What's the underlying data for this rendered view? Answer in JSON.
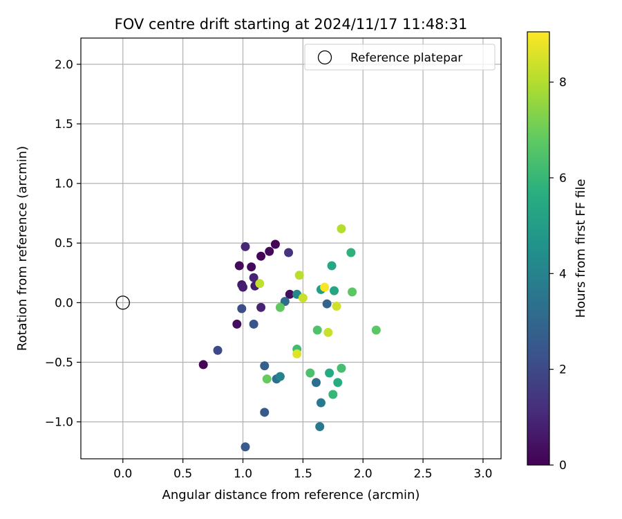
{
  "chart_data": {
    "type": "scatter",
    "title": "FOV centre drift starting at 2024/11/17 11:48:31",
    "xlabel": "Angular distance from reference (arcmin)",
    "ylabel": "Rotation from reference (arcmin)",
    "xlim": [
      -0.35,
      3.15
    ],
    "ylim": [
      -1.31,
      2.22
    ],
    "x_ticks": [
      0.0,
      0.5,
      1.0,
      1.5,
      2.0,
      2.5,
      3.0
    ],
    "x_tick_labels": [
      "0.0",
      "0.5",
      "1.0",
      "1.5",
      "2.0",
      "2.5",
      "3.0"
    ],
    "y_ticks": [
      -1.0,
      -0.5,
      0.0,
      0.5,
      1.0,
      1.5,
      2.0
    ],
    "y_tick_labels": [
      "−1.0",
      "−0.5",
      "0.0",
      "0.5",
      "1.0",
      "1.5",
      "2.0"
    ],
    "grid": true,
    "legend": {
      "placement": "top-right",
      "entries": [
        "Reference platepar"
      ]
    },
    "reference_point": {
      "x": 0.0,
      "y": 0.0,
      "marker": "open-circle",
      "label": "Reference platepar"
    },
    "colorbar": {
      "label": "Hours from first FF file",
      "colormap": "viridis",
      "range": [
        0,
        9.05
      ],
      "ticks": [
        0,
        2,
        4,
        6,
        8
      ],
      "tick_labels": [
        "0",
        "2",
        "4",
        "6",
        "8"
      ]
    },
    "points": [
      {
        "x": 0.67,
        "y": -0.52,
        "h": 0.1
      },
      {
        "x": 0.95,
        "y": -0.18,
        "h": 0.3
      },
      {
        "x": 0.97,
        "y": 0.31,
        "h": 0.2
      },
      {
        "x": 0.99,
        "y": 0.15,
        "h": 0.6
      },
      {
        "x": 1.0,
        "y": 0.13,
        "h": 0.8
      },
      {
        "x": 1.07,
        "y": 0.3,
        "h": 0.2
      },
      {
        "x": 1.09,
        "y": 0.21,
        "h": 0.9
      },
      {
        "x": 1.1,
        "y": 0.14,
        "h": 0.7
      },
      {
        "x": 1.15,
        "y": 0.39,
        "h": 0.1
      },
      {
        "x": 1.22,
        "y": 0.43,
        "h": 0.2
      },
      {
        "x": 1.27,
        "y": 0.49,
        "h": 0.1
      },
      {
        "x": 1.02,
        "y": 0.47,
        "h": 1.0
      },
      {
        "x": 1.15,
        "y": -0.04,
        "h": 0.9
      },
      {
        "x": 1.39,
        "y": 0.07,
        "h": 0.3
      },
      {
        "x": 1.38,
        "y": 0.42,
        "h": 1.3
      },
      {
        "x": 0.79,
        "y": -0.4,
        "h": 2.0
      },
      {
        "x": 0.99,
        "y": -0.05,
        "h": 2.1
      },
      {
        "x": 1.09,
        "y": -0.18,
        "h": 2.4
      },
      {
        "x": 1.18,
        "y": -0.92,
        "h": 2.5
      },
      {
        "x": 1.02,
        "y": -1.21,
        "h": 2.6
      },
      {
        "x": 1.18,
        "y": -0.53,
        "h": 2.8
      },
      {
        "x": 1.7,
        "y": -0.01,
        "h": 2.9
      },
      {
        "x": 1.35,
        "y": 0.01,
        "h": 3.2
      },
      {
        "x": 1.28,
        "y": -0.64,
        "h": 3.3
      },
      {
        "x": 1.61,
        "y": -0.67,
        "h": 3.3
      },
      {
        "x": 1.65,
        "y": -0.84,
        "h": 3.6
      },
      {
        "x": 1.64,
        "y": -1.04,
        "h": 3.6
      },
      {
        "x": 1.31,
        "y": -0.62,
        "h": 4.0
      },
      {
        "x": 1.45,
        "y": 0.07,
        "h": 4.2
      },
      {
        "x": 1.65,
        "y": 0.11,
        "h": 5.0
      },
      {
        "x": 1.74,
        "y": 0.31,
        "h": 5.4
      },
      {
        "x": 1.76,
        "y": 0.1,
        "h": 5.3
      },
      {
        "x": 1.79,
        "y": -0.67,
        "h": 5.6
      },
      {
        "x": 1.72,
        "y": -0.59,
        "h": 5.5
      },
      {
        "x": 1.9,
        "y": 0.42,
        "h": 5.8
      },
      {
        "x": 1.75,
        "y": -0.77,
        "h": 6.0
      },
      {
        "x": 1.45,
        "y": -0.39,
        "h": 6.2
      },
      {
        "x": 1.56,
        "y": -0.59,
        "h": 6.4
      },
      {
        "x": 1.62,
        "y": -0.23,
        "h": 6.5
      },
      {
        "x": 1.82,
        "y": -0.55,
        "h": 6.3
      },
      {
        "x": 1.31,
        "y": -0.04,
        "h": 6.8
      },
      {
        "x": 1.2,
        "y": -0.64,
        "h": 6.9
      },
      {
        "x": 1.91,
        "y": 0.09,
        "h": 6.7
      },
      {
        "x": 2.11,
        "y": -0.23,
        "h": 6.7
      },
      {
        "x": 1.82,
        "y": 0.62,
        "h": 8.0
      },
      {
        "x": 1.47,
        "y": 0.23,
        "h": 8.1
      },
      {
        "x": 1.14,
        "y": 0.16,
        "h": 8.2
      },
      {
        "x": 1.5,
        "y": 0.04,
        "h": 8.3
      },
      {
        "x": 1.78,
        "y": -0.03,
        "h": 8.4
      },
      {
        "x": 1.71,
        "y": -0.25,
        "h": 8.3
      },
      {
        "x": 1.45,
        "y": -0.43,
        "h": 8.6
      },
      {
        "x": 1.68,
        "y": 0.13,
        "h": 9.0
      }
    ]
  }
}
